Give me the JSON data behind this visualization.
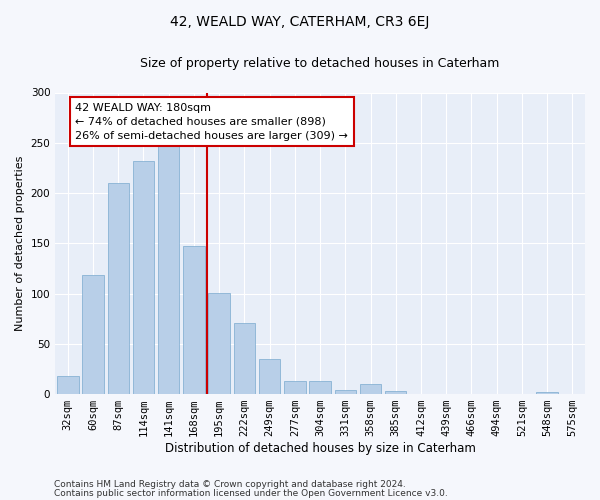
{
  "title": "42, WEALD WAY, CATERHAM, CR3 6EJ",
  "subtitle": "Size of property relative to detached houses in Caterham",
  "xlabel": "Distribution of detached houses by size in Caterham",
  "ylabel": "Number of detached properties",
  "bar_color": "#b8cfe8",
  "bar_edge_color": "#7aaacf",
  "background_color": "#e8eef8",
  "fig_background_color": "#f5f7fc",
  "grid_color": "#ffffff",
  "categories": [
    "32sqm",
    "60sqm",
    "87sqm",
    "114sqm",
    "141sqm",
    "168sqm",
    "195sqm",
    "222sqm",
    "249sqm",
    "277sqm",
    "304sqm",
    "331sqm",
    "358sqm",
    "385sqm",
    "412sqm",
    "439sqm",
    "466sqm",
    "494sqm",
    "521sqm",
    "548sqm",
    "575sqm"
  ],
  "values": [
    18,
    118,
    210,
    232,
    248,
    147,
    101,
    71,
    35,
    13,
    13,
    4,
    10,
    3,
    0,
    0,
    0,
    0,
    0,
    2,
    0
  ],
  "property_line_x": 5.5,
  "annotation_text": "42 WEALD WAY: 180sqm\n← 74% of detached houses are smaller (898)\n26% of semi-detached houses are larger (309) →",
  "annotation_box_color": "#ffffff",
  "annotation_edge_color": "#cc0000",
  "property_line_color": "#cc0000",
  "ylim": [
    0,
    300
  ],
  "yticks": [
    0,
    50,
    100,
    150,
    200,
    250,
    300
  ],
  "footnote1": "Contains HM Land Registry data © Crown copyright and database right 2024.",
  "footnote2": "Contains public sector information licensed under the Open Government Licence v3.0.",
  "footnote_fontsize": 6.5,
  "title_fontsize": 10,
  "subtitle_fontsize": 9,
  "xlabel_fontsize": 8.5,
  "ylabel_fontsize": 8,
  "tick_fontsize": 7.5,
  "annotation_fontsize": 8
}
